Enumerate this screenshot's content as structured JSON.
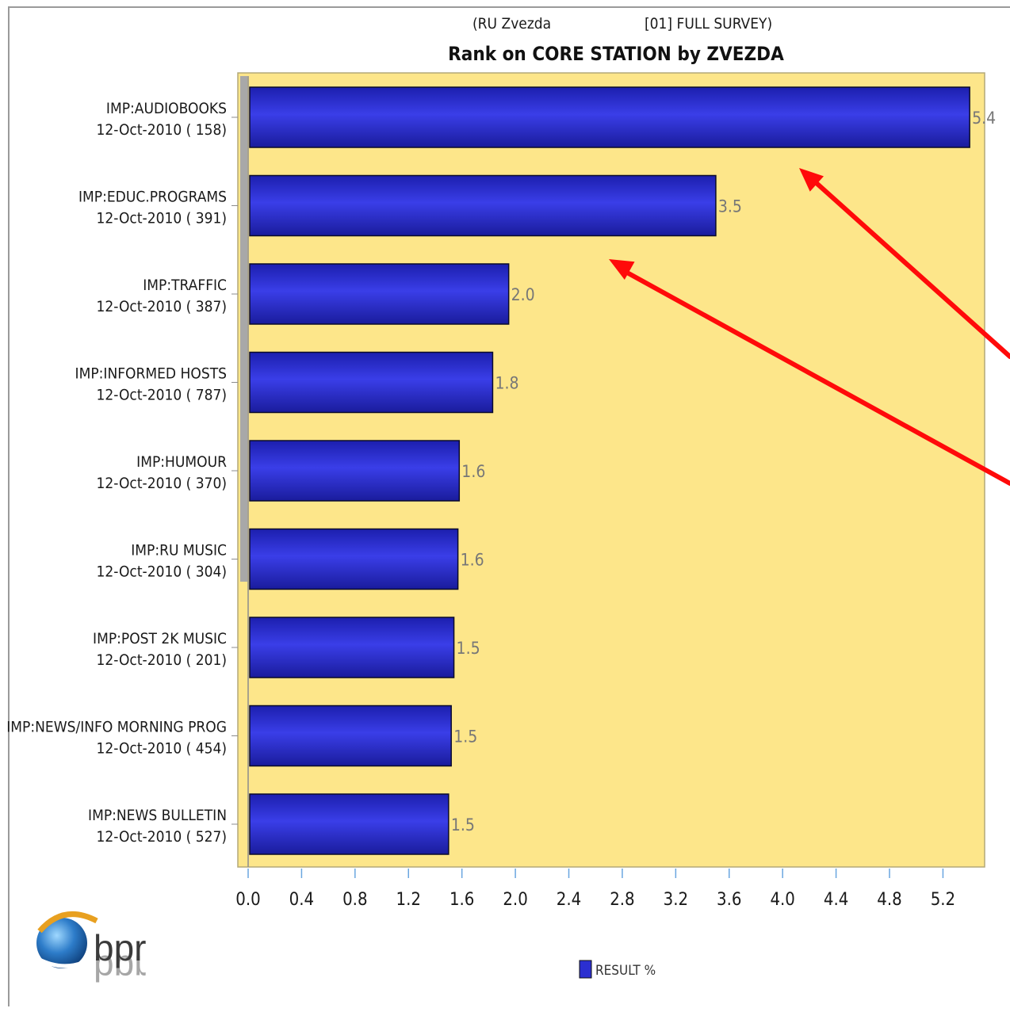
{
  "chart_data": {
    "type": "bar",
    "orientation": "horizontal",
    "subtitle_left": "(RU Zvezda",
    "subtitle_right": "[01] FULL SURVEY)",
    "title": "Rank on CORE STATION by ZVEZDA",
    "categories": [
      {
        "name": "IMP:AUDIOBOOKS",
        "date": "12-Oct-2010",
        "count": "( 158)"
      },
      {
        "name": "IMP:EDUC.PROGRAMS",
        "date": "12-Oct-2010",
        "count": "( 391)"
      },
      {
        "name": "IMP:TRAFFIC",
        "date": "12-Oct-2010",
        "count": "( 387)"
      },
      {
        "name": "IMP:INFORMED HOSTS",
        "date": "12-Oct-2010",
        "count": "( 787)"
      },
      {
        "name": "IMP:HUMOUR",
        "date": "12-Oct-2010",
        "count": "( 370)"
      },
      {
        "name": "IMP:RU MUSIC",
        "date": "12-Oct-2010",
        "count": "( 304)"
      },
      {
        "name": "IMP:POST 2K MUSIC",
        "date": "12-Oct-2010",
        "count": "( 201)"
      },
      {
        "name": "IMP:NEWS/INFO MORNING PROG",
        "date": "12-Oct-2010",
        "count": "( 454)"
      },
      {
        "name": "IMP:NEWS BULLETIN",
        "date": "12-Oct-2010",
        "count": "( 527)"
      }
    ],
    "series": [
      {
        "name": "RESULT %",
        "values": [
          5.4,
          3.5,
          1.95,
          1.83,
          1.58,
          1.57,
          1.54,
          1.52,
          1.5
        ],
        "labels": [
          "5.4",
          "3.5",
          "2.0",
          "1.8",
          "1.6",
          "1.6",
          "1.5",
          "1.5",
          "1.5"
        ]
      }
    ],
    "xlim": [
      0,
      5.5
    ],
    "xticks": [
      "0.0",
      "0.4",
      "0.8",
      "1.2",
      "1.6",
      "2.0",
      "2.4",
      "2.8",
      "3.2",
      "3.6",
      "4.0",
      "4.4",
      "4.8",
      "5.2"
    ],
    "grid": false,
    "legend": "bottom-center",
    "colors": {
      "bar": "#2b2fd0",
      "bar_highlight": "#5a5ef0",
      "plot_background": "#fde68a",
      "annotation_arrow": "#ff0a0a"
    },
    "annotations": [
      {
        "type": "arrow",
        "target_category": "IMP:AUDIOBOOKS"
      },
      {
        "type": "arrow",
        "target_category": "IMP:EDUC.PROGRAMS"
      }
    ]
  },
  "logo": {
    "text": "bpr",
    "icon": "globe-logo-icon"
  }
}
